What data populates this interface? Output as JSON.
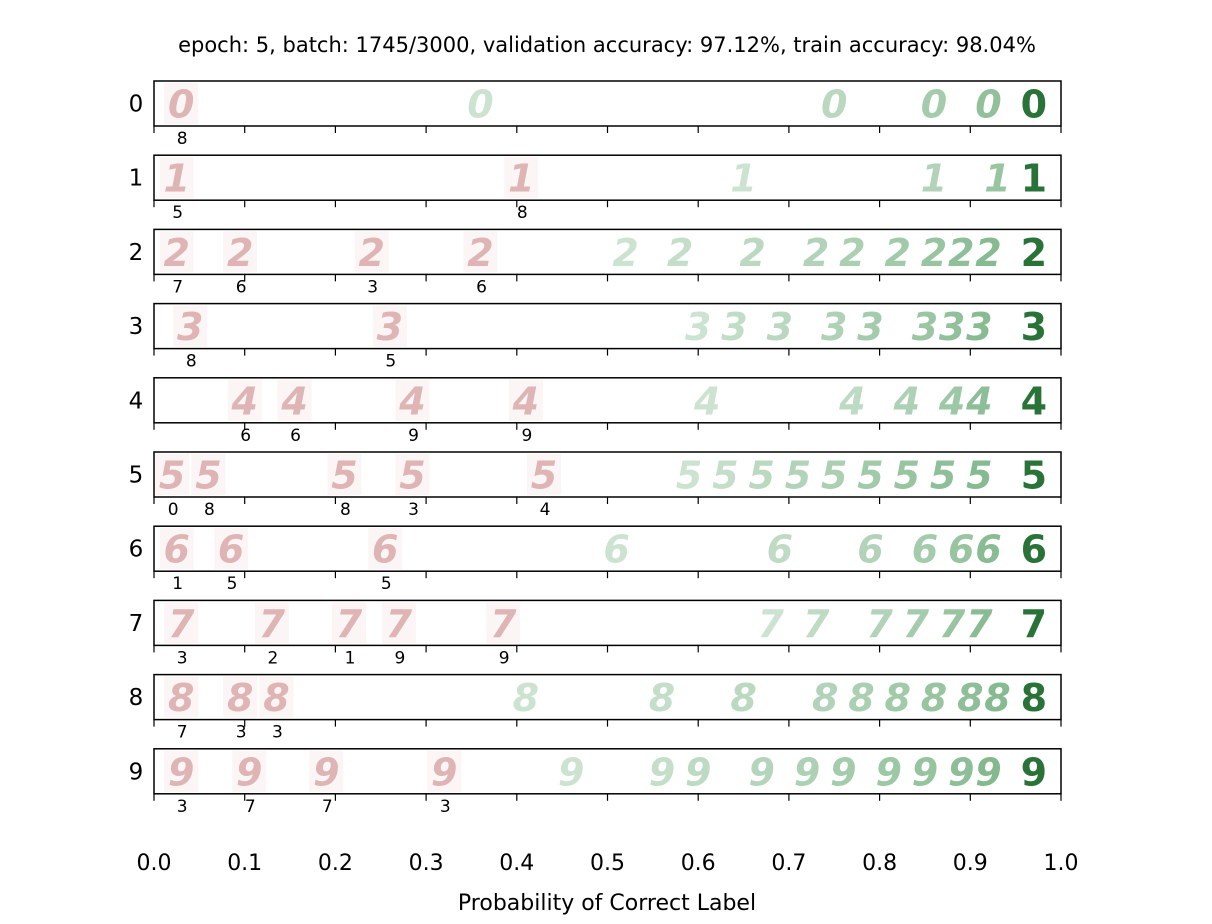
{
  "chart_data": {
    "type": "scatter",
    "title": "epoch: 5, batch: 1745/3000, validation accuracy: 97.12%, train accuracy: 98.04%",
    "xlabel": "Probability of Correct Label",
    "xlim": [
      0.0,
      1.0
    ],
    "x_ticks": [
      "0.0",
      "0.1",
      "0.2",
      "0.3",
      "0.4",
      "0.5",
      "0.6",
      "0.7",
      "0.8",
      "0.9",
      "1.0"
    ],
    "colors": {
      "misclassified": "#d9a8a8",
      "correct": "#4d9a5c",
      "best": "#1e6b2e"
    },
    "rows": [
      {
        "label": "0",
        "mis": [
          {
            "x": 0.03,
            "pred": "8"
          }
        ],
        "cor": [
          0.36,
          0.75,
          0.86,
          0.92,
          0.97
        ]
      },
      {
        "label": "1",
        "mis": [
          {
            "x": 0.025,
            "pred": "5"
          },
          {
            "x": 0.405,
            "pred": "8"
          }
        ],
        "cor": [
          0.65,
          0.86,
          0.93,
          0.97
        ]
      },
      {
        "label": "2",
        "mis": [
          {
            "x": 0.025,
            "pred": "7"
          },
          {
            "x": 0.095,
            "pred": "6"
          },
          {
            "x": 0.24,
            "pred": "3"
          },
          {
            "x": 0.36,
            "pred": "6"
          }
        ],
        "cor": [
          0.52,
          0.58,
          0.66,
          0.73,
          0.77,
          0.82,
          0.86,
          0.89,
          0.92,
          0.97
        ]
      },
      {
        "label": "3",
        "mis": [
          {
            "x": 0.04,
            "pred": "8"
          },
          {
            "x": 0.26,
            "pred": "5"
          }
        ],
        "cor": [
          0.6,
          0.64,
          0.69,
          0.75,
          0.79,
          0.85,
          0.88,
          0.91,
          0.97
        ]
      },
      {
        "label": "4",
        "mis": [
          {
            "x": 0.1,
            "pred": "6"
          },
          {
            "x": 0.155,
            "pred": "6"
          },
          {
            "x": 0.285,
            "pred": "9"
          },
          {
            "x": 0.41,
            "pred": "9"
          }
        ],
        "cor": [
          0.61,
          0.77,
          0.83,
          0.88,
          0.91,
          0.97
        ]
      },
      {
        "label": "5",
        "mis": [
          {
            "x": 0.02,
            "pred": "0"
          },
          {
            "x": 0.06,
            "pred": "8"
          },
          {
            "x": 0.21,
            "pred": "8"
          },
          {
            "x": 0.285,
            "pred": "3"
          },
          {
            "x": 0.43,
            "pred": "4"
          }
        ],
        "cor": [
          0.59,
          0.63,
          0.67,
          0.71,
          0.75,
          0.79,
          0.83,
          0.87,
          0.91,
          0.97
        ]
      },
      {
        "label": "6",
        "mis": [
          {
            "x": 0.025,
            "pred": "1"
          },
          {
            "x": 0.085,
            "pred": "5"
          },
          {
            "x": 0.255,
            "pred": "5"
          }
        ],
        "cor": [
          0.51,
          0.69,
          0.79,
          0.85,
          0.89,
          0.92,
          0.97
        ]
      },
      {
        "label": "7",
        "mis": [
          {
            "x": 0.03,
            "pred": "3"
          },
          {
            "x": 0.13,
            "pred": "2"
          },
          {
            "x": 0.215,
            "pred": "1"
          },
          {
            "x": 0.27,
            "pred": "9"
          },
          {
            "x": 0.385,
            "pred": "9"
          }
        ],
        "cor": [
          0.68,
          0.73,
          0.8,
          0.84,
          0.88,
          0.91,
          0.97
        ]
      },
      {
        "label": "8",
        "mis": [
          {
            "x": 0.03,
            "pred": "7"
          },
          {
            "x": 0.095,
            "pred": "3"
          },
          {
            "x": 0.135,
            "pred": "3"
          }
        ],
        "cor": [
          0.41,
          0.56,
          0.65,
          0.74,
          0.78,
          0.82,
          0.86,
          0.9,
          0.93,
          0.97
        ]
      },
      {
        "label": "9",
        "mis": [
          {
            "x": 0.03,
            "pred": "3"
          },
          {
            "x": 0.105,
            "pred": "7"
          },
          {
            "x": 0.19,
            "pred": "7"
          },
          {
            "x": 0.32,
            "pred": "3"
          }
        ],
        "cor": [
          0.46,
          0.56,
          0.6,
          0.67,
          0.72,
          0.76,
          0.81,
          0.85,
          0.89,
          0.92,
          0.97
        ]
      }
    ]
  }
}
